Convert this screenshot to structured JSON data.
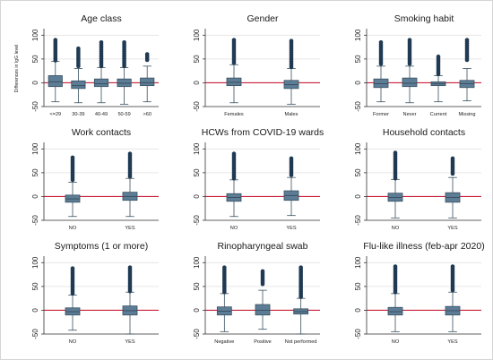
{
  "chart_data": [
    {
      "type": "box",
      "title": "Age class",
      "ylabel": "Differences in IgG level",
      "yticks": [
        -50,
        0,
        50,
        100
      ],
      "ylim": [
        -50,
        110
      ],
      "reference_line": 0,
      "categories": [
        "<=29",
        "30-39",
        "40-49",
        "50-59",
        ">60"
      ],
      "boxes": [
        {
          "whisker_low": -40,
          "q1": -8,
          "median": 2,
          "q3": 15,
          "whisker_high": 45,
          "outliers_from": 47,
          "outliers_to": 90
        },
        {
          "whisker_low": -42,
          "q1": -12,
          "median": -6,
          "q3": 4,
          "whisker_high": 30,
          "outliers_from": 35,
          "outliers_to": 72
        },
        {
          "whisker_low": -42,
          "q1": -8,
          "median": -2,
          "q3": 8,
          "whisker_high": 32,
          "outliers_from": 35,
          "outliers_to": 85
        },
        {
          "whisker_low": -45,
          "q1": -8,
          "median": -1,
          "q3": 8,
          "whisker_high": 32,
          "outliers_from": 35,
          "outliers_to": 85
        },
        {
          "whisker_low": -40,
          "q1": -6,
          "median": 0,
          "q3": 10,
          "whisker_high": 35,
          "outliers_from": 48,
          "outliers_to": 60
        }
      ]
    },
    {
      "type": "box",
      "title": "Gender",
      "yticks": [
        -50,
        0,
        50,
        100
      ],
      "ylim": [
        -50,
        110
      ],
      "reference_line": 0,
      "categories": [
        "Females",
        "Males"
      ],
      "boxes": [
        {
          "whisker_low": -42,
          "q1": -6,
          "median": 1,
          "q3": 10,
          "whisker_high": 38,
          "outliers_from": 42,
          "outliers_to": 90
        },
        {
          "whisker_low": -45,
          "q1": -12,
          "median": -4,
          "q3": 5,
          "whisker_high": 30,
          "outliers_from": 33,
          "outliers_to": 88
        }
      ]
    },
    {
      "type": "box",
      "title": "Smoking habit",
      "yticks": [
        -50,
        0,
        50,
        100
      ],
      "ylim": [
        -50,
        110
      ],
      "reference_line": 0,
      "categories": [
        "Former",
        "Never",
        "Current",
        "Missing"
      ],
      "boxes": [
        {
          "whisker_low": -40,
          "q1": -10,
          "median": -2,
          "q3": 8,
          "whisker_high": 35,
          "outliers_from": 40,
          "outliers_to": 85
        },
        {
          "whisker_low": -42,
          "q1": -8,
          "median": -1,
          "q3": 10,
          "whisker_high": 35,
          "outliers_from": 40,
          "outliers_to": 90
        },
        {
          "whisker_low": -40,
          "q1": -6,
          "median": -2,
          "q3": 2,
          "whisker_high": 15,
          "outliers_from": 18,
          "outliers_to": 55
        },
        {
          "whisker_low": -38,
          "q1": -10,
          "median": -2,
          "q3": 5,
          "whisker_high": 30,
          "outliers_from": 48,
          "outliers_to": 90
        }
      ]
    },
    {
      "type": "box",
      "title": "Work contacts",
      "yticks": [
        -50,
        0,
        50,
        100
      ],
      "ylim": [
        -50,
        110
      ],
      "reference_line": 0,
      "categories": [
        "NO",
        "YES"
      ],
      "boxes": [
        {
          "whisker_low": -42,
          "q1": -12,
          "median": -5,
          "q3": 3,
          "whisker_high": 30,
          "outliers_from": 35,
          "outliers_to": 82
        },
        {
          "whisker_low": -42,
          "q1": -8,
          "median": 0,
          "q3": 9,
          "whisker_high": 38,
          "outliers_from": 42,
          "outliers_to": 90
        }
      ]
    },
    {
      "type": "box",
      "title": "HCWs from COVID-19 wards",
      "yticks": [
        -50,
        0,
        50,
        100
      ],
      "ylim": [
        -50,
        110
      ],
      "reference_line": 0,
      "categories": [
        "NO",
        "YES"
      ],
      "boxes": [
        {
          "whisker_low": -42,
          "q1": -10,
          "median": -2,
          "q3": 6,
          "whisker_high": 35,
          "outliers_from": 38,
          "outliers_to": 90
        },
        {
          "whisker_low": -40,
          "q1": -8,
          "median": 2,
          "q3": 12,
          "whisker_high": 40,
          "outliers_from": 45,
          "outliers_to": 80
        }
      ]
    },
    {
      "type": "box",
      "title": "Household contacts",
      "yticks": [
        -50,
        0,
        50,
        100
      ],
      "ylim": [
        -50,
        110
      ],
      "reference_line": 0,
      "categories": [
        "NO",
        "YES"
      ],
      "boxes": [
        {
          "whisker_low": -45,
          "q1": -10,
          "median": -2,
          "q3": 7,
          "whisker_high": 36,
          "outliers_from": 38,
          "outliers_to": 92
        },
        {
          "whisker_low": -45,
          "q1": -12,
          "median": -2,
          "q3": 8,
          "whisker_high": 40,
          "outliers_from": 48,
          "outliers_to": 80
        }
      ]
    },
    {
      "type": "box",
      "title": "Symptoms (1 or more)",
      "yticks": [
        -50,
        0,
        50,
        100
      ],
      "ylim": [
        -50,
        110
      ],
      "reference_line": 0,
      "categories": [
        "NO",
        "YES"
      ],
      "boxes": [
        {
          "whisker_low": -42,
          "q1": -10,
          "median": -3,
          "q3": 5,
          "whisker_high": 32,
          "outliers_from": 35,
          "outliers_to": 88
        },
        {
          "whisker_low": -50,
          "q1": -10,
          "median": -1,
          "q3": 9,
          "whisker_high": 38,
          "outliers_from": 40,
          "outliers_to": 90
        }
      ]
    },
    {
      "type": "box",
      "title": "Rinopharyngeal swab",
      "yticks": [
        -50,
        0,
        50,
        100
      ],
      "ylim": [
        -50,
        110
      ],
      "reference_line": 0,
      "categories": [
        "Negative",
        "Positive",
        "Not performed"
      ],
      "boxes": [
        {
          "whisker_low": -45,
          "q1": -10,
          "median": -2,
          "q3": 7,
          "whisker_high": 35,
          "outliers_from": 38,
          "outliers_to": 90
        },
        {
          "whisker_low": -40,
          "q1": -10,
          "median": 0,
          "q3": 12,
          "whisker_high": 42,
          "outliers_from": 55,
          "outliers_to": 82
        },
        {
          "whisker_low": -50,
          "q1": -8,
          "median": -3,
          "q3": 3,
          "whisker_high": 25,
          "outliers_from": 28,
          "outliers_to": 90
        }
      ]
    },
    {
      "type": "box",
      "title": "Flu-like illness (feb-apr 2020)",
      "yticks": [
        -50,
        0,
        50,
        100
      ],
      "ylim": [
        -50,
        110
      ],
      "reference_line": 0,
      "categories": [
        "NO",
        "YES"
      ],
      "boxes": [
        {
          "whisker_low": -45,
          "q1": -10,
          "median": -3,
          "q3": 6,
          "whisker_high": 35,
          "outliers_from": 38,
          "outliers_to": 92
        },
        {
          "whisker_low": -45,
          "q1": -10,
          "median": -1,
          "q3": 8,
          "whisker_high": 38,
          "outliers_from": 42,
          "outliers_to": 92
        }
      ]
    }
  ],
  "colors": {
    "box_fill": "#5d7c96",
    "box_edge": "#38505f",
    "outlier": "#1f3a52",
    "reference_line": "#c8203a",
    "grid": "#e6e6e6"
  }
}
